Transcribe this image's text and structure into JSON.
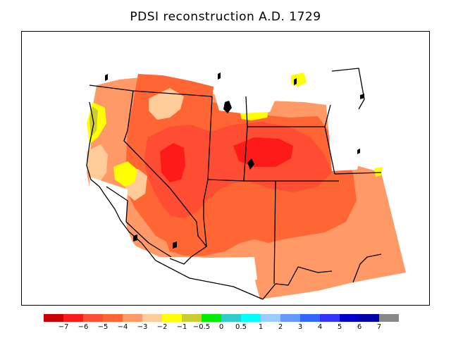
{
  "title": "PDSI reconstruction A.D. 1729",
  "legend": {
    "colors": [
      "#cc0000",
      "#ff1a1a",
      "#ff4d33",
      "#ff6633",
      "#ff9966",
      "#ffcc99",
      "#ffff00",
      "#cccc33",
      "#00ee00",
      "#33cccc",
      "#00ffff",
      "#99ccff",
      "#6699ff",
      "#3366ff",
      "#3333ff",
      "#0000cc",
      "#0000aa",
      "#888888"
    ],
    "ticks": [
      "−7",
      "−6",
      "−5",
      "−4",
      "−3",
      "−2",
      "−1",
      "−0.5",
      "0",
      "0.5",
      "1",
      "2",
      "3",
      "4",
      "5",
      "6",
      "7"
    ]
  },
  "map": {
    "region": "Western United States",
    "fill_colors": {
      "base": "#ff9966",
      "dry": "#ff6633",
      "very_dry": "#ff4d33",
      "extreme": "#ff1a1a",
      "mild": "#ffcc99",
      "near_normal": "#ffff00",
      "slightly_wet": "#cccc33"
    }
  }
}
